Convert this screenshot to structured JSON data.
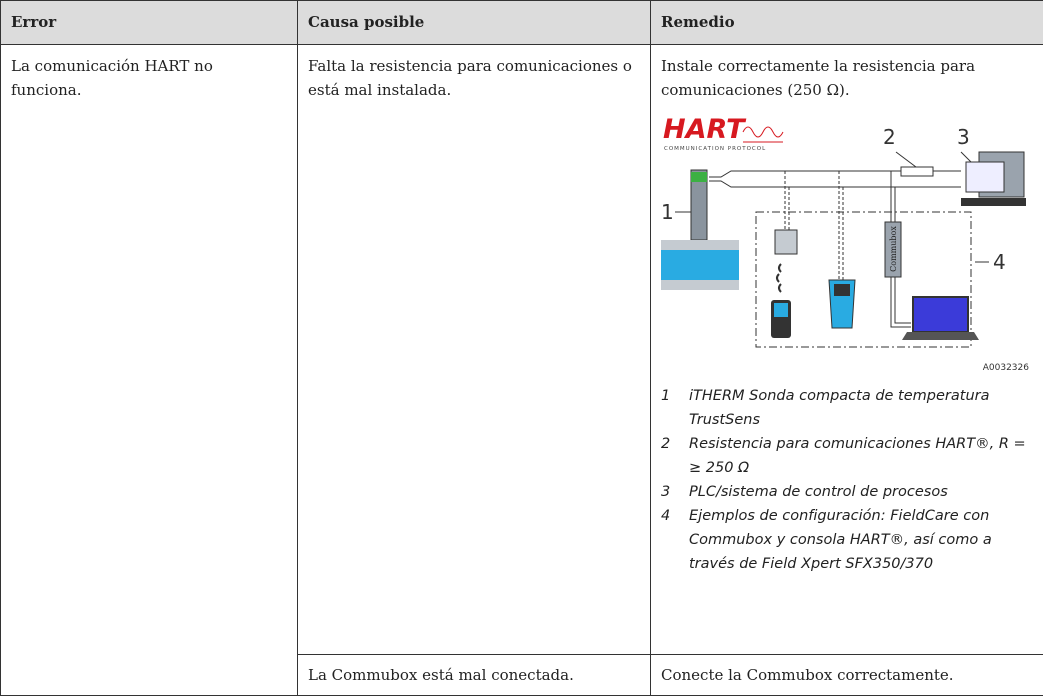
{
  "table": {
    "header": [
      "Error",
      "Causa posible",
      "Remedio"
    ],
    "rows": [
      {
        "error": "La comunicación HART no funciona.",
        "cause": "Falta la resistencia para comunicaciones o está mal instalada.",
        "remedy": "Instale correctamente la resistencia para comunicaciones (250 Ω).",
        "figure": {
          "logo": "HART",
          "logo_subtitle": "COMMUNICATION PROTOCOL",
          "callouts": [
            "1",
            "2",
            "3",
            "4"
          ],
          "device_label": "Commubox",
          "code": "A0032326"
        },
        "legend": [
          {
            "number": "1",
            "text": "iTHERM Sonda compacta de temperatura TrustSens"
          },
          {
            "number": "2",
            "text": "Resistencia para comunicaciones HART®, R = ≥ 250 Ω"
          },
          {
            "number": "3",
            "text": "PLC/sistema de control de procesos"
          },
          {
            "number": "4",
            "text": "Ejemplos de configuración: FieldCare con Commubox y consola HART®, así como a través de Field Xpert SFX350/370"
          }
        ]
      },
      {
        "cause": "La Commubox está mal conectada.",
        "remedy": "Conecte la Commubox correctamente."
      }
    ]
  }
}
